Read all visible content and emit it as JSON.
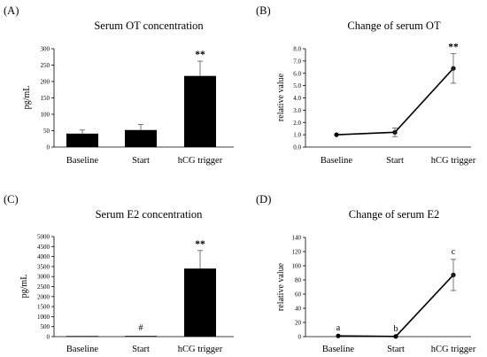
{
  "chart_data": [
    {
      "panel": "(A)",
      "type": "bar",
      "title": "Serum OT concentration",
      "ylabel": "pg/mL",
      "categories": [
        "Baseline",
        "Start",
        "hCG trigger"
      ],
      "values": [
        41,
        52,
        217
      ],
      "errors": [
        11,
        17,
        45
      ],
      "ylim": [
        0,
        300
      ],
      "yticks": [
        0,
        50,
        100,
        150,
        200,
        250,
        300
      ],
      "annotations": [
        "",
        "",
        "**"
      ],
      "grid": false
    },
    {
      "panel": "(B)",
      "type": "line",
      "title": "Change of serum OT",
      "ylabel": "relative value",
      "categories": [
        "Baseline",
        "Start",
        "hCG trigger"
      ],
      "values": [
        1.0,
        1.2,
        6.4
      ],
      "errors": [
        0,
        0.35,
        1.2
      ],
      "ylim": [
        0,
        8
      ],
      "yticks": [
        0.0,
        1.0,
        2.0,
        3.0,
        4.0,
        5.0,
        6.0,
        7.0,
        8.0
      ],
      "annotations": [
        "",
        "",
        "**"
      ],
      "grid": false
    },
    {
      "panel": "(C)",
      "type": "bar",
      "title": "Serum E2 concentration",
      "ylabel": "pg/mL",
      "categories": [
        "Baseline",
        "Start",
        "hCG trigger"
      ],
      "values": [
        30,
        35,
        3400
      ],
      "errors": [
        0,
        0,
        900
      ],
      "ylim": [
        0,
        5000
      ],
      "yticks": [
        0,
        500,
        1000,
        1500,
        2000,
        2500,
        3000,
        3500,
        4000,
        4500,
        5000
      ],
      "annotations": [
        "",
        "#",
        "**"
      ],
      "grid": false
    },
    {
      "panel": "(D)",
      "type": "line",
      "title": "Change of serum E2",
      "ylabel": "relative value",
      "categories": [
        "Baseline",
        "Start",
        "hCG trigger"
      ],
      "values": [
        1,
        0.3,
        87
      ],
      "errors": [
        0,
        0,
        22
      ],
      "ylim": [
        0,
        140
      ],
      "yticks": [
        0,
        20,
        40,
        60,
        80,
        100,
        120,
        140
      ],
      "annotations": [
        "a",
        "b",
        "c"
      ],
      "grid": false
    }
  ]
}
